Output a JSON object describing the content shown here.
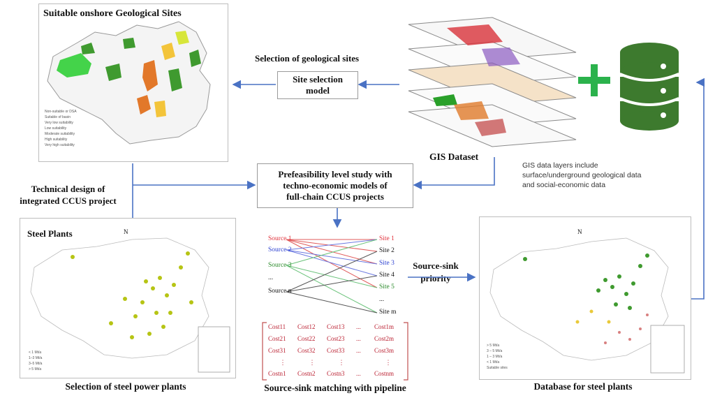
{
  "geo_panel": {
    "title": "Suitable onshore Geological Sites",
    "legend": [
      "Non-suitable or DSA",
      "Suitable of basin",
      "Very low suitability",
      "Low suitability",
      "Moderate suitability",
      "High suitability",
      "Very high suitability"
    ]
  },
  "labels": {
    "selection_geo": "Selection of geological sites",
    "site_model_line1": "Site selection",
    "site_model_line2": "model",
    "gis_dataset": "GIS Dataset",
    "gis_note_line1": "GIS data layers include",
    "gis_note_line2": "surface/underground geological data",
    "gis_note_line3": "and social-economic data",
    "tech_design_line1": "Technical design of",
    "tech_design_line2": "integrated CCUS project",
    "prefeas_line1": "Prefeasibility level study with",
    "prefeas_line2": "techno-economic models of",
    "prefeas_line3": "full-chain CCUS projects",
    "source_sink_line1": "Source-sink",
    "source_sink_line2": "priority"
  },
  "steel_panel": {
    "title": "Steel Plants",
    "north": "N",
    "legend": [
      "< 1 Mt/a",
      "1–3 Mt/a",
      "3–5 Mt/a",
      "> 5 Mt/a"
    ]
  },
  "db_panel": {
    "north": "N",
    "legend": [
      "> 5 Mt/a",
      "3 – 5 Mt/a",
      "1 – 3 Mt/a",
      "< 1 Mt/a",
      "Suitable sites"
    ]
  },
  "matching": {
    "sources": [
      "Source 1",
      "Source 2",
      "Source 3",
      "...",
      "Source n"
    ],
    "sinks": [
      "Site 1",
      "Site 2",
      "Site 3",
      "Site 4",
      "Site 5",
      "...",
      "Site m"
    ],
    "colors": {
      "source1": "#e0303a",
      "source2": "#2a3fd0",
      "source3": "#2a8a2a",
      "red_line": "#e05a5a",
      "blue_line": "#6a78e0",
      "green_line": "#6ac27a"
    },
    "matrix": [
      [
        "Cost11",
        "Cost12",
        "Cost13",
        "...",
        "Cost1m"
      ],
      [
        "Cost21",
        "Cost22",
        "Cost23",
        "...",
        "Cost2m"
      ],
      [
        "Cost31",
        "Cost32",
        "Cost33",
        "...",
        "Cost3m"
      ],
      [
        "⋮",
        "⋮",
        "⋮",
        "",
        "⋮"
      ],
      [
        "Costn1",
        "Costn2",
        "Costn3",
        "...",
        "Costnm"
      ]
    ]
  },
  "captions": {
    "steel": "Selection of steel power plants",
    "matching": "Source-sink matching with pipeline",
    "database": "Database for steel plants"
  },
  "colors": {
    "arrow": "#4a72c4",
    "db_green": "#3d7a2e",
    "plus_green": "#2bb24c"
  }
}
